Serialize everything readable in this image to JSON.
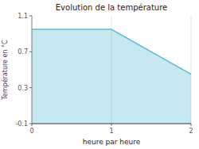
{
  "chart_data": {
    "type": "area",
    "title": "Evolution de la température",
    "x_label": "heure par heure",
    "y_label": "Température en °C",
    "x": [
      0,
      1,
      2
    ],
    "values": [
      0.95,
      0.95,
      0.45
    ],
    "xlim": [
      0,
      2
    ],
    "ylim": [
      -0.1,
      1.1
    ],
    "xticks": [
      0,
      1,
      2
    ],
    "yticks": [
      -0.1,
      0.3,
      0.7,
      1.1
    ],
    "color": "#5bbcd6",
    "grid": true
  }
}
